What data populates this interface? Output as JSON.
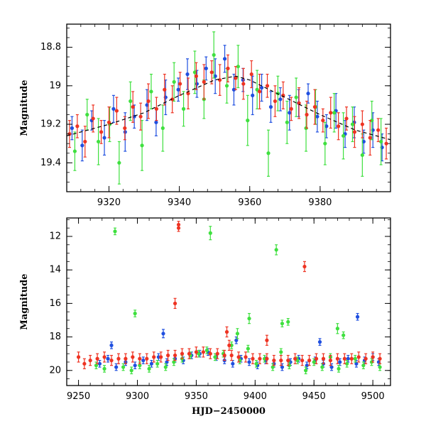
{
  "chart_data": [
    {
      "type": "scatter",
      "panel": "top",
      "title": "",
      "xlabel": "",
      "ylabel": "Magnitude",
      "xlim": [
        9308,
        9400
      ],
      "ylim": [
        19.55,
        18.68
      ],
      "y_inverted": true,
      "x_ticks": [
        9320,
        9340,
        9360,
        9380
      ],
      "y_ticks": [
        18.8,
        19,
        19.2,
        19.4
      ],
      "x_tick_labels": [
        "9320",
        "9340",
        "9360",
        "9380"
      ],
      "y_tick_labels": [
        "18.8",
        "19",
        "19.2",
        "19.4"
      ],
      "model_curve": {
        "color": "#000000",
        "style": "dashed",
        "x": [
          9308,
          9320,
          9330,
          9340,
          9350,
          9356,
          9360,
          9370,
          9380,
          9390,
          9400
        ],
        "y": [
          19.26,
          19.2,
          19.14,
          19.05,
          18.97,
          18.95,
          18.97,
          19.06,
          19.15,
          19.23,
          19.28
        ]
      },
      "series": [
        {
          "name": "blue",
          "color": "#1f4fe0",
          "x": [
            9309.5,
            9312.4,
            9315.1,
            9318.7,
            9321.3,
            9324.6,
            9327.2,
            9330.8,
            9333.4,
            9336.1,
            9339.7,
            9342.3,
            9345.0,
            9347.6,
            9350.2,
            9352.9,
            9355.5,
            9358.1,
            9360.8,
            9363.4,
            9366.0,
            9368.7,
            9371.3,
            9373.9,
            9376.6,
            9379.2,
            9381.8,
            9384.5,
            9387.1,
            9389.7,
            9392.4,
            9395.0,
            9397.6
          ],
          "y": [
            19.22,
            19.31,
            19.18,
            19.27,
            19.12,
            19.24,
            19.16,
            19.1,
            19.19,
            19.06,
            19.02,
            18.94,
            18.99,
            18.91,
            18.95,
            18.86,
            19.02,
            18.97,
            19.05,
            19.01,
            19.11,
            19.07,
            19.14,
            19.09,
            19.04,
            19.16,
            19.21,
            19.13,
            19.25,
            19.19,
            19.29,
            19.23,
            19.32
          ],
          "err": [
            0.06,
            0.08,
            0.05,
            0.09,
            0.07,
            0.1,
            0.06,
            0.08,
            0.07,
            0.09,
            0.06,
            0.08,
            0.07,
            0.06,
            0.09,
            0.07,
            0.08,
            0.06,
            0.1,
            0.07,
            0.08,
            0.06,
            0.09,
            0.07,
            0.05,
            0.08,
            0.06,
            0.09,
            0.07,
            0.08,
            0.06,
            0.09,
            0.07
          ]
        },
        {
          "name": "green",
          "color": "#3fe03f",
          "x": [
            9310.3,
            9313.8,
            9317.0,
            9320.2,
            9322.9,
            9326.1,
            9329.4,
            9332.0,
            9335.3,
            9338.5,
            9341.2,
            9344.4,
            9347.0,
            9349.8,
            9353.5,
            9356.7,
            9359.4,
            9362.1,
            9365.3,
            9368.0,
            9370.6,
            9373.2,
            9376.0,
            9378.7,
            9381.4,
            9384.0,
            9386.6,
            9389.2,
            9392.0,
            9394.7,
            9397.3
          ],
          "y": [
            19.34,
            19.15,
            19.29,
            19.2,
            19.4,
            19.08,
            19.31,
            19.03,
            19.22,
            18.98,
            19.12,
            18.93,
            19.07,
            18.84,
            19.0,
            18.9,
            19.18,
            19.02,
            19.35,
            19.04,
            19.19,
            19.06,
            19.22,
            19.11,
            19.3,
            19.14,
            19.26,
            19.2,
            19.36,
            19.18,
            19.29
          ],
          "err": [
            0.1,
            0.08,
            0.12,
            0.09,
            0.11,
            0.1,
            0.13,
            0.09,
            0.12,
            0.1,
            0.09,
            0.11,
            0.1,
            0.12,
            0.09,
            0.11,
            0.13,
            0.1,
            0.12,
            0.09,
            0.11,
            0.1,
            0.12,
            0.09,
            0.11,
            0.1,
            0.12,
            0.09,
            0.11,
            0.1,
            0.12
          ]
        },
        {
          "name": "red",
          "color": "#ee3322",
          "x": [
            9308.8,
            9311.0,
            9313.2,
            9315.5,
            9317.8,
            9320.0,
            9322.2,
            9324.5,
            9326.8,
            9329.0,
            9331.2,
            9333.5,
            9335.8,
            9338.0,
            9340.2,
            9342.5,
            9344.8,
            9347.0,
            9349.2,
            9351.5,
            9353.8,
            9356.0,
            9358.2,
            9360.5,
            9362.8,
            9365.0,
            9367.2,
            9369.5,
            9371.8,
            9374.0,
            9376.2,
            9378.5,
            9380.8,
            9383.0,
            9385.2,
            9387.5,
            9389.8,
            9392.0,
            9394.2,
            9396.5,
            9398.8
          ],
          "y": [
            19.25,
            19.21,
            19.29,
            19.17,
            19.24,
            19.19,
            19.13,
            19.22,
            19.11,
            19.16,
            19.08,
            19.12,
            19.02,
            19.07,
            18.99,
            19.04,
            18.95,
            18.98,
            18.93,
            18.97,
            18.91,
            18.96,
            18.99,
            18.94,
            19.03,
            19.0,
            19.08,
            19.05,
            19.12,
            19.09,
            19.15,
            19.11,
            19.18,
            19.14,
            19.21,
            19.17,
            19.24,
            19.2,
            19.27,
            19.23,
            19.3
          ],
          "err": [
            0.07,
            0.06,
            0.08,
            0.07,
            0.06,
            0.08,
            0.07,
            0.06,
            0.08,
            0.07,
            0.09,
            0.06,
            0.08,
            0.07,
            0.06,
            0.08,
            0.07,
            0.09,
            0.06,
            0.08,
            0.07,
            0.06,
            0.08,
            0.07,
            0.09,
            0.06,
            0.08,
            0.07,
            0.06,
            0.08,
            0.07,
            0.09,
            0.06,
            0.08,
            0.07,
            0.06,
            0.08,
            0.07,
            0.09,
            0.06,
            0.08
          ]
        }
      ]
    },
    {
      "type": "scatter",
      "panel": "bottom",
      "title": "",
      "xlabel": "HJD−2450000",
      "ylabel": "Magnitude",
      "xlim": [
        9240,
        9515
      ],
      "ylim": [
        20.9,
        10.9
      ],
      "y_inverted": true,
      "x_ticks": [
        9250,
        9300,
        9350,
        9400,
        9450,
        9500
      ],
      "y_ticks": [
        12,
        14,
        16,
        18,
        20
      ],
      "x_tick_labels": [
        "9250",
        "9300",
        "9350",
        "9400",
        "9450",
        "9500"
      ],
      "y_tick_labels": [
        "12",
        "14",
        "16",
        "18",
        "20"
      ],
      "series": [
        {
          "name": "blue",
          "color": "#1f4fe0",
          "x": [
            9268,
            9275,
            9282,
            9290,
            9298,
            9305,
            9312,
            9318,
            9325,
            9332,
            9339,
            9346,
            9353,
            9360,
            9367,
            9374,
            9381,
            9388,
            9395,
            9402,
            9409,
            9416,
            9423,
            9430,
            9437,
            9444,
            9451,
            9458,
            9465,
            9472,
            9479,
            9486,
            9493,
            9500,
            9505,
            9278,
            9322,
            9384,
            9455,
            9487
          ],
          "y": [
            19.6,
            19.3,
            19.8,
            19.5,
            19.7,
            19.4,
            19.6,
            19.2,
            19.5,
            19.3,
            19.4,
            19.1,
            19.0,
            18.9,
            19.2,
            19.4,
            19.6,
            19.3,
            19.5,
            19.7,
            19.4,
            19.6,
            19.8,
            19.5,
            19.3,
            19.7,
            19.4,
            19.6,
            19.8,
            19.5,
            19.3,
            19.6,
            19.4,
            19.2,
            19.5,
            18.5,
            17.8,
            18.2,
            18.3,
            16.8
          ],
          "err": [
            0.2,
            0.2,
            0.2,
            0.2,
            0.2,
            0.2,
            0.2,
            0.2,
            0.2,
            0.2,
            0.2,
            0.2,
            0.2,
            0.2,
            0.2,
            0.2,
            0.2,
            0.2,
            0.2,
            0.2,
            0.2,
            0.2,
            0.2,
            0.2,
            0.2,
            0.2,
            0.2,
            0.2,
            0.2,
            0.2,
            0.2,
            0.2,
            0.2,
            0.2,
            0.2,
            0.2,
            0.25,
            0.2,
            0.2,
            0.2
          ]
        },
        {
          "name": "green",
          "color": "#3fe03f",
          "x": [
            9281,
            9362,
            9418,
            9298,
            9395,
            9423,
            9428,
            9470,
            9475,
            9385,
            9265,
            9272,
            9288,
            9295,
            9302,
            9310,
            9317,
            9324,
            9331,
            9338,
            9345,
            9352,
            9359,
            9366,
            9373,
            9380,
            9387,
            9394,
            9401,
            9408,
            9415,
            9422,
            9429,
            9436,
            9443,
            9450,
            9457,
            9464,
            9471,
            9478,
            9485,
            9492,
            9499,
            9506
          ],
          "y": [
            11.7,
            11.8,
            12.8,
            16.6,
            16.9,
            17.2,
            17.1,
            17.5,
            17.9,
            17.8,
            19.7,
            19.9,
            19.8,
            20.0,
            19.7,
            19.9,
            19.6,
            19.8,
            19.5,
            19.3,
            19.1,
            19.0,
            18.8,
            19.2,
            19.0,
            18.5,
            19.4,
            18.7,
            19.6,
            19.3,
            19.8,
            18.9,
            19.7,
            19.4,
            20.0,
            19.5,
            19.8,
            19.2,
            19.9,
            19.6,
            19.3,
            19.7,
            19.5,
            19.8
          ],
          "err": [
            0.2,
            0.4,
            0.3,
            0.2,
            0.3,
            0.2,
            0.2,
            0.3,
            0.2,
            0.3,
            0.2,
            0.2,
            0.2,
            0.2,
            0.2,
            0.2,
            0.2,
            0.2,
            0.2,
            0.2,
            0.2,
            0.2,
            0.2,
            0.2,
            0.2,
            0.2,
            0.2,
            0.2,
            0.2,
            0.2,
            0.2,
            0.2,
            0.2,
            0.2,
            0.2,
            0.2,
            0.2,
            0.2,
            0.2,
            0.2,
            0.2,
            0.2,
            0.2,
            0.2
          ]
        },
        {
          "name": "red",
          "color": "#ee3322",
          "x": [
            9335,
            9335,
            9332,
            9442,
            9376,
            9378,
            9410,
            9250,
            9255,
            9260,
            9266,
            9272,
            9278,
            9284,
            9290,
            9296,
            9302,
            9308,
            9314,
            9320,
            9326,
            9332,
            9338,
            9344,
            9350,
            9356,
            9362,
            9368,
            9374,
            9380,
            9386,
            9392,
            9398,
            9404,
            9410,
            9416,
            9422,
            9428,
            9434,
            9440,
            9446,
            9452,
            9458,
            9464,
            9470,
            9476,
            9482,
            9488,
            9494,
            9500,
            9506
          ],
          "y": [
            11.3,
            11.5,
            16.0,
            13.8,
            17.7,
            18.5,
            18.2,
            19.2,
            19.6,
            19.4,
            19.3,
            19.2,
            19.4,
            19.3,
            19.3,
            19.2,
            19.3,
            19.3,
            19.2,
            19.2,
            19.1,
            19.1,
            19.0,
            19.0,
            18.9,
            18.9,
            19.0,
            19.0,
            19.1,
            19.1,
            19.2,
            19.2,
            19.3,
            19.3,
            19.3,
            19.4,
            19.4,
            19.4,
            19.3,
            19.4,
            19.4,
            19.3,
            19.3,
            19.4,
            19.3,
            19.3,
            19.3,
            19.2,
            19.3,
            19.2,
            19.3
          ],
          "err": [
            0.2,
            0.2,
            0.3,
            0.3,
            0.3,
            0.3,
            0.3,
            0.3,
            0.3,
            0.3,
            0.3,
            0.3,
            0.3,
            0.3,
            0.3,
            0.3,
            0.3,
            0.3,
            0.3,
            0.3,
            0.3,
            0.3,
            0.3,
            0.3,
            0.3,
            0.3,
            0.3,
            0.3,
            0.3,
            0.3,
            0.3,
            0.3,
            0.3,
            0.3,
            0.3,
            0.3,
            0.3,
            0.3,
            0.3,
            0.3,
            0.3,
            0.3,
            0.3,
            0.3,
            0.3,
            0.3,
            0.3,
            0.3,
            0.3,
            0.3,
            0.3
          ]
        }
      ]
    }
  ]
}
